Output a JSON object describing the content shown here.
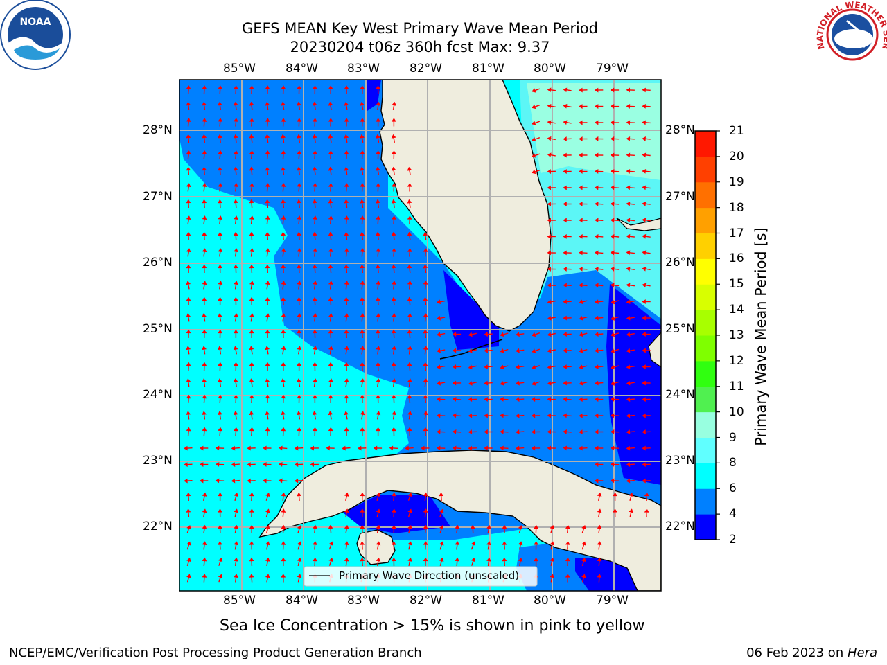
{
  "title_line1": "GEFS MEAN Key West Primary Wave Mean Period",
  "title_line2": "20230204 t06z 360h fcst   Max: 9.37",
  "logos": {
    "left": "NOAA",
    "right": "NATIONAL WEATHER SERVICE"
  },
  "lon_labels": [
    "85°W",
    "84°W",
    "83°W",
    "82°W",
    "81°W",
    "80°W",
    "79°W"
  ],
  "lat_labels": [
    "28°N",
    "27°N",
    "26°N",
    "25°N",
    "24°N",
    "23°N",
    "22°N"
  ],
  "legend_label": "Primary Wave Direction (unscaled)",
  "colorbar": {
    "label": "Primary Wave Mean Period [s]",
    "ticks": [
      "2",
      "4",
      "6",
      "8",
      "9",
      "10",
      "11",
      "12",
      "13",
      "14",
      "15",
      "16",
      "17",
      "18",
      "19",
      "20",
      "21"
    ],
    "colors": [
      "#0000ff",
      "#0080ff",
      "#00ffff",
      "#60ffff",
      "#98ffe0",
      "#50f050",
      "#30ff10",
      "#7fff00",
      "#a8ff00",
      "#d8ff00",
      "#ffff00",
      "#ffd000",
      "#ffa000",
      "#ff7000",
      "#ff4000",
      "#ff1800"
    ]
  },
  "colors": {
    "land": "#efedde",
    "grid": "#b0b0b0",
    "arrow": "#ff0000"
  },
  "note": "Sea Ice Concentration > 15% is shown in pink to yellow",
  "footer_left": "NCEP/EMC/Verification Post Processing Product Generation Branch",
  "footer_right_date": "06 Feb 2023 on ",
  "footer_right_host": "Hera"
}
